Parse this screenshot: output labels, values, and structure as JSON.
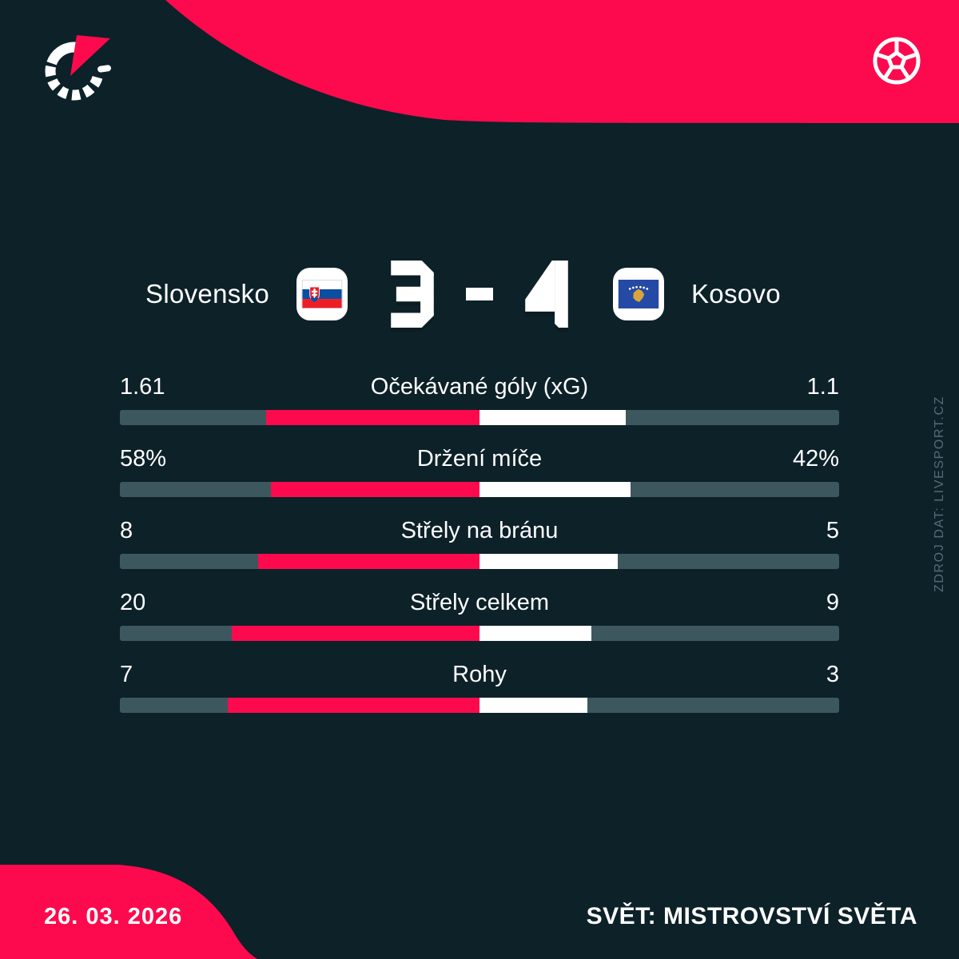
{
  "header": {
    "home_team": "Slovensko",
    "away_team": "Kosovo",
    "home_score": "3",
    "away_score": "4",
    "score_separator": "-",
    "home_flag": "slovakia",
    "away_flag": "kosovo"
  },
  "stats": {
    "rows": [
      {
        "label": "Očekávané góly (xG)",
        "left": "1.61",
        "right": "1.1"
      },
      {
        "label": "Držení míče",
        "left": "58%",
        "right": "42%"
      },
      {
        "label": "Střely na bránu",
        "left": "8",
        "right": "5"
      },
      {
        "label": "Střely celkem",
        "left": "20",
        "right": "9"
      },
      {
        "label": "Rohy",
        "left": "7",
        "right": "3"
      }
    ]
  },
  "source_note": "ZDROJ DAT: LIVESPORT.CZ",
  "footer": {
    "date": "26. 03. 2026",
    "competition": "SVĚT: MISTROVSTVÍ SVĚTA"
  },
  "icons": {
    "logo": "livesport-logo",
    "ball": "football-icon"
  },
  "colors": {
    "background": "#0d2129",
    "accent_red": "#fc0a4d",
    "bar_track": "#3d575e",
    "bar_home": "#fc0a4d",
    "bar_away": "#ffffff",
    "muted_text": "#566b73"
  },
  "chart_data": {
    "type": "bar",
    "title": "Slovensko 3 - 4 Kosovo",
    "categories": [
      "Očekávané góly (xG)",
      "Držení míče",
      "Střely na bránu",
      "Střely celkem",
      "Rohy"
    ],
    "series": [
      {
        "name": "Slovensko",
        "values": [
          1.61,
          58,
          8,
          20,
          7
        ]
      },
      {
        "name": "Kosovo",
        "values": [
          1.1,
          42,
          5,
          9,
          3
        ]
      }
    ],
    "layout": "paired horizontal bars growing outward from center; left share = value / (left+right)",
    "legend_position": "none",
    "grid": false
  }
}
